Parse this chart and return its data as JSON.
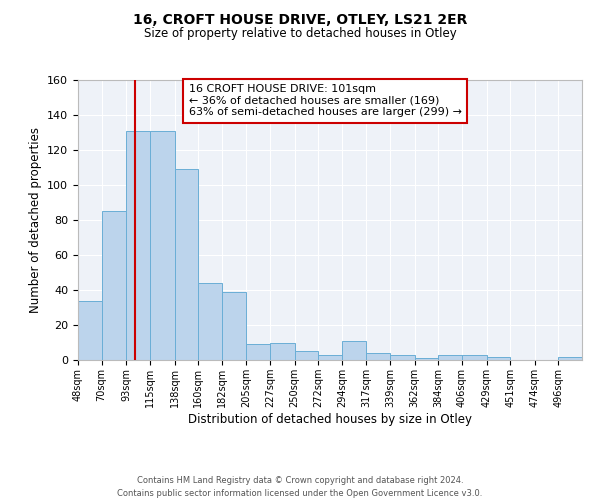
{
  "title": "16, CROFT HOUSE DRIVE, OTLEY, LS21 2ER",
  "subtitle": "Size of property relative to detached houses in Otley",
  "xlabel": "Distribution of detached houses by size in Otley",
  "ylabel": "Number of detached properties",
  "bin_labels": [
    "48sqm",
    "70sqm",
    "93sqm",
    "115sqm",
    "138sqm",
    "160sqm",
    "182sqm",
    "205sqm",
    "227sqm",
    "250sqm",
    "272sqm",
    "294sqm",
    "317sqm",
    "339sqm",
    "362sqm",
    "384sqm",
    "406sqm",
    "429sqm",
    "451sqm",
    "474sqm",
    "496sqm"
  ],
  "bar_values": [
    34,
    85,
    131,
    131,
    109,
    44,
    39,
    9,
    10,
    5,
    3,
    11,
    4,
    3,
    1,
    3,
    3,
    2,
    0,
    0,
    2
  ],
  "bar_color": "#bcd4ec",
  "bar_edge_color": "#6aaed6",
  "vline_x": 101,
  "vline_color": "#cc0000",
  "ylim": [
    0,
    160
  ],
  "yticks": [
    0,
    20,
    40,
    60,
    80,
    100,
    120,
    140,
    160
  ],
  "annotation_title": "16 CROFT HOUSE DRIVE: 101sqm",
  "annotation_line1": "← 36% of detached houses are smaller (169)",
  "annotation_line2": "63% of semi-detached houses are larger (299) →",
  "annotation_box_color": "#ffffff",
  "annotation_box_edge_color": "#cc0000",
  "footer1": "Contains HM Land Registry data © Crown copyright and database right 2024.",
  "footer2": "Contains public sector information licensed under the Open Government Licence v3.0.",
  "bin_edges": [
    48,
    70,
    93,
    115,
    138,
    160,
    182,
    205,
    227,
    250,
    272,
    294,
    317,
    339,
    362,
    384,
    406,
    429,
    451,
    474,
    496,
    518
  ]
}
